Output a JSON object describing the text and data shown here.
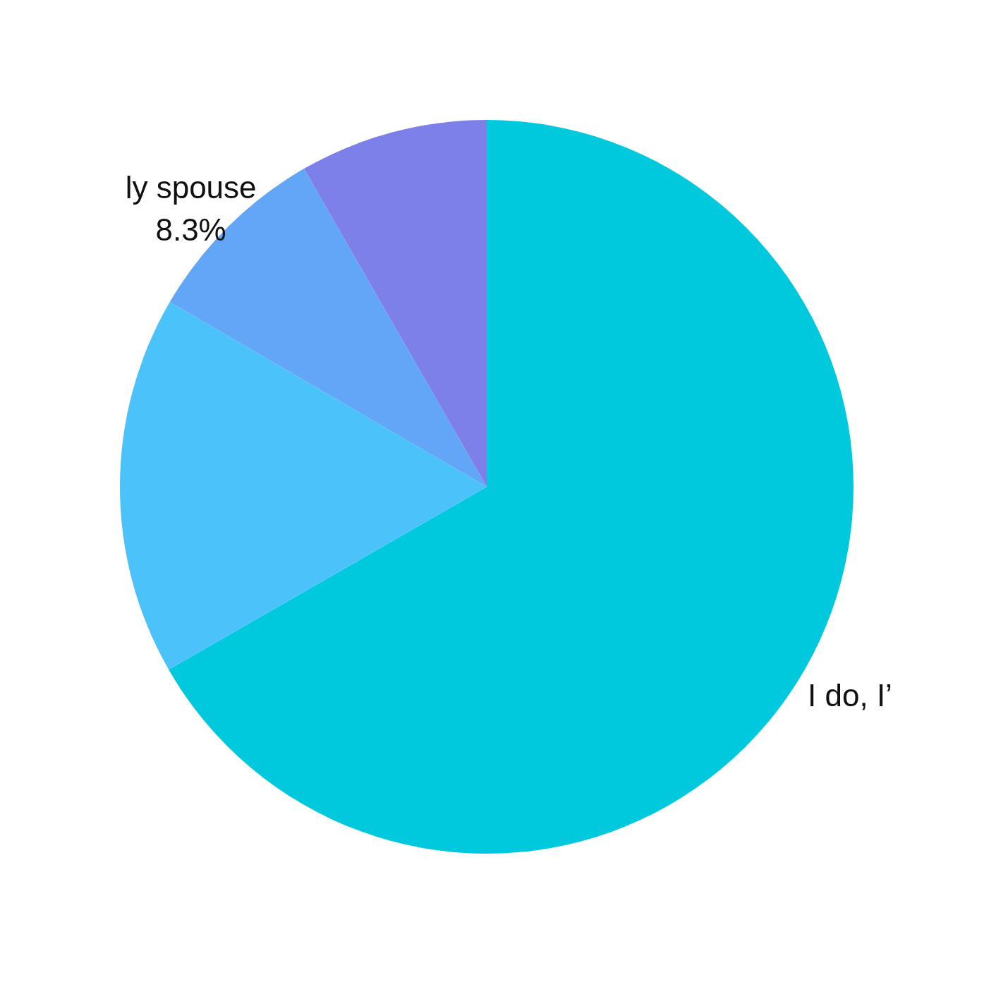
{
  "chart_data": {
    "type": "pie",
    "categories": [
      "I do, I’",
      null,
      "ly spouse",
      null
    ],
    "values": [
      66.7,
      16.7,
      8.3,
      8.3
    ],
    "value_labels": [
      null,
      null,
      "8.3%",
      null
    ],
    "colors": [
      "#00c9de",
      "#4cc2fb",
      "#62a6f8",
      "#7c80e8"
    ],
    "legend": false
  }
}
